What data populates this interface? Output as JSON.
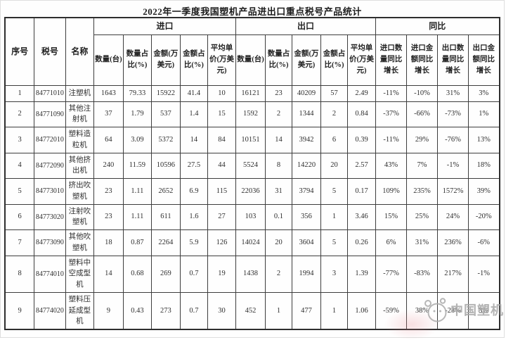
{
  "title": "2022年一季度我国塑机产品进出口重点税号产品统计",
  "table": {
    "corner_headers": {
      "seq": "序号",
      "code": "税号",
      "name": "名称"
    },
    "groups": {
      "import": "进口",
      "export": "出口",
      "yoy": "同比"
    },
    "metric_headers": {
      "qty": "数量(台)",
      "qty_share": "数量占比(%)",
      "amount": "金额(万美元)",
      "amount_share": "金额占比(%)",
      "avg_price": "平均单价(万美元)"
    },
    "yoy_headers": [
      "进口数量同比增长",
      "进口金额同比增长",
      "出口数量同比增长",
      "出口金额同比增长"
    ],
    "rows": [
      [
        "1",
        "84771010",
        "注塑机",
        "1643",
        "79.33",
        "15922",
        "41.4",
        "10",
        "16121",
        "23",
        "40209",
        "57",
        "2.49",
        "-11%",
        "-10%",
        "31%",
        "3%"
      ],
      [
        "2",
        "84771090",
        "其他注射机",
        "37",
        "1.79",
        "537",
        "1.4",
        "15",
        "1592",
        "2",
        "1344",
        "2",
        "0.84",
        "-37%",
        "-66%",
        "-73%",
        "1%"
      ],
      [
        "3",
        "84772010",
        "塑料造粒机",
        "64",
        "3.09",
        "5372",
        "14",
        "84",
        "10151",
        "14",
        "3942",
        "6",
        "0.39",
        "-11%",
        "29%",
        "-76%",
        "13%"
      ],
      [
        "4",
        "84772090",
        "其他挤出机",
        "240",
        "11.59",
        "10596",
        "27.5",
        "44",
        "5524",
        "8",
        "14220",
        "20",
        "2.57",
        "43%",
        "7%",
        "-1%",
        "18%"
      ],
      [
        "5",
        "84773010",
        "挤出吹塑机",
        "23",
        "1.11",
        "2652",
        "6.9",
        "115",
        "22036",
        "31",
        "3794",
        "5",
        "0.17",
        "109%",
        "235%",
        "1572%",
        "39%"
      ],
      [
        "6",
        "84773020",
        "注射吹塑机",
        "23",
        "1.11",
        "611",
        "1.6",
        "27",
        "103",
        "0.1",
        "356",
        "1",
        "3.46",
        "15%",
        "25%",
        "24%",
        "-20%"
      ],
      [
        "7",
        "84773090",
        "其他吹塑机",
        "18",
        "0.87",
        "2264",
        "5.9",
        "126",
        "14024",
        "20",
        "3604",
        "5",
        "0.26",
        "6%",
        "31%",
        "236%",
        "-6%"
      ],
      [
        "8",
        "84774010",
        "塑料中空成型机",
        "14",
        "0.68",
        "269",
        "0.7",
        "19",
        "1438",
        "2",
        "1994",
        "3",
        "1.39",
        "-77%",
        "-83%",
        "217%",
        "-1%"
      ],
      [
        "9",
        "84774020",
        "塑料压延成型机",
        "9",
        "0.43",
        "273",
        "0.7",
        "30",
        "452",
        "1",
        "477",
        "1",
        "1.06",
        "-59%",
        "38%",
        "-28%",
        "3%"
      ]
    ]
  },
  "watermark": {
    "text": "中国塑机",
    "color": "#a6a6a6"
  }
}
